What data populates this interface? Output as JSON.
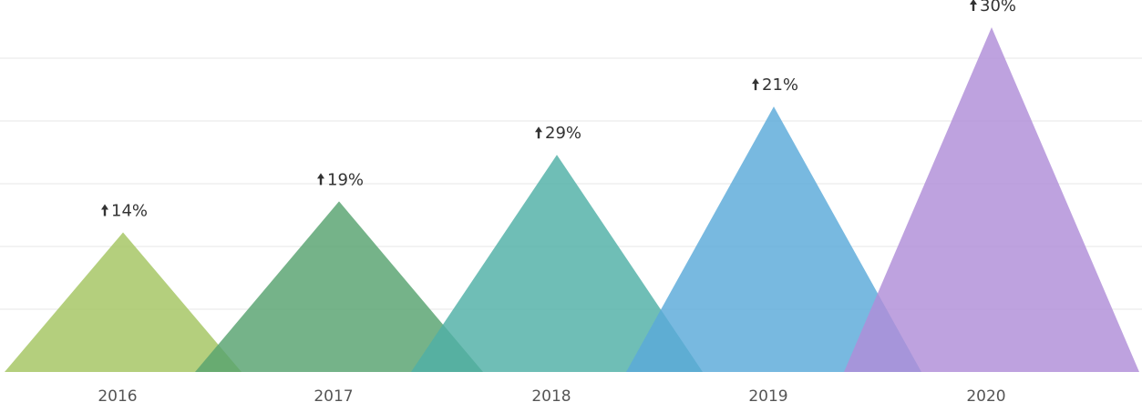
{
  "chart_data": {
    "type": "area",
    "title": "",
    "xlabel": "",
    "ylabel": "",
    "categories": [
      "2016",
      "2017",
      "2018",
      "2019",
      "2020"
    ],
    "values": [
      14,
      19,
      29,
      21,
      30
    ],
    "data_labels": [
      "14%",
      "19%",
      "29%",
      "21%",
      "30%"
    ],
    "heights": [
      0.405,
      0.495,
      0.63,
      0.77,
      1.0
    ],
    "grid": true,
    "legend": "none",
    "colors": [
      "#a3c560",
      "#57a26f",
      "#4fb0a6",
      "#5aa9d9",
      "#b08ed8"
    ],
    "label_arrow_icon": "arrow-up-icon"
  }
}
